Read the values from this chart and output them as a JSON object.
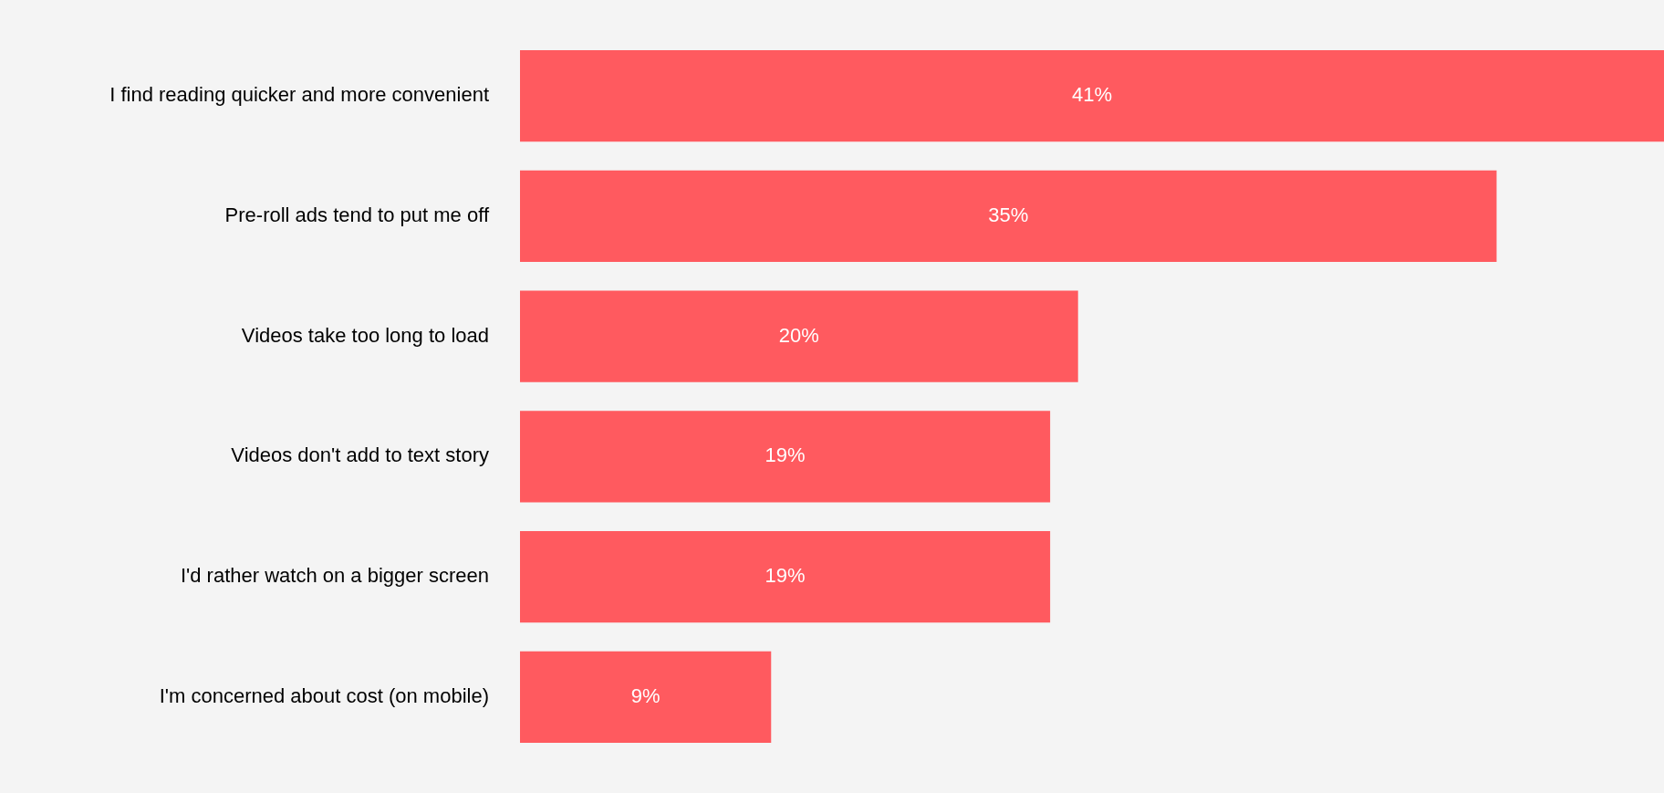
{
  "chart_data": {
    "type": "bar",
    "orientation": "horizontal",
    "categories": [
      "I find reading quicker and more convenient",
      "Pre-roll ads tend to put me off",
      "Videos take too long to load",
      "Videos don't add to text story",
      "I'd rather watch on a bigger screen",
      "I'm concerned about cost (on mobile)"
    ],
    "values": [
      41,
      35,
      20,
      19,
      19,
      9
    ],
    "value_labels": [
      "41%",
      "35%",
      "20%",
      "19%",
      "19%",
      "9%"
    ],
    "color": "#ff5a5f",
    "xlim": [
      0,
      41
    ],
    "legend": false
  }
}
